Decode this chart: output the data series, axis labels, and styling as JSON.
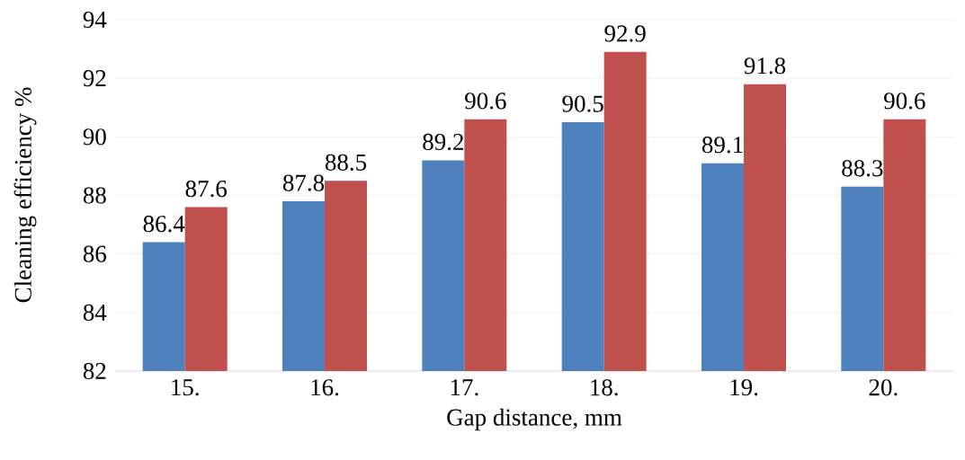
{
  "chart_data": {
    "type": "bar",
    "xlabel": "Gap distance, mm",
    "ylabel": "Cleaning efficiency %",
    "categories": [
      "15.",
      "16.",
      "17.",
      "18.",
      "19.",
      "20."
    ],
    "series": [
      {
        "color": "#4f81bd",
        "values": [
          86.4,
          87.8,
          89.2,
          90.5,
          89.1,
          88.3
        ]
      },
      {
        "color": "#c0504d",
        "values": [
          87.6,
          88.5,
          90.6,
          92.9,
          91.8,
          90.6
        ]
      }
    ],
    "ylim": [
      82,
      94
    ],
    "yticks": [
      82,
      84,
      86,
      88,
      90,
      92,
      94
    ],
    "grid": "y",
    "data_labels": true
  }
}
